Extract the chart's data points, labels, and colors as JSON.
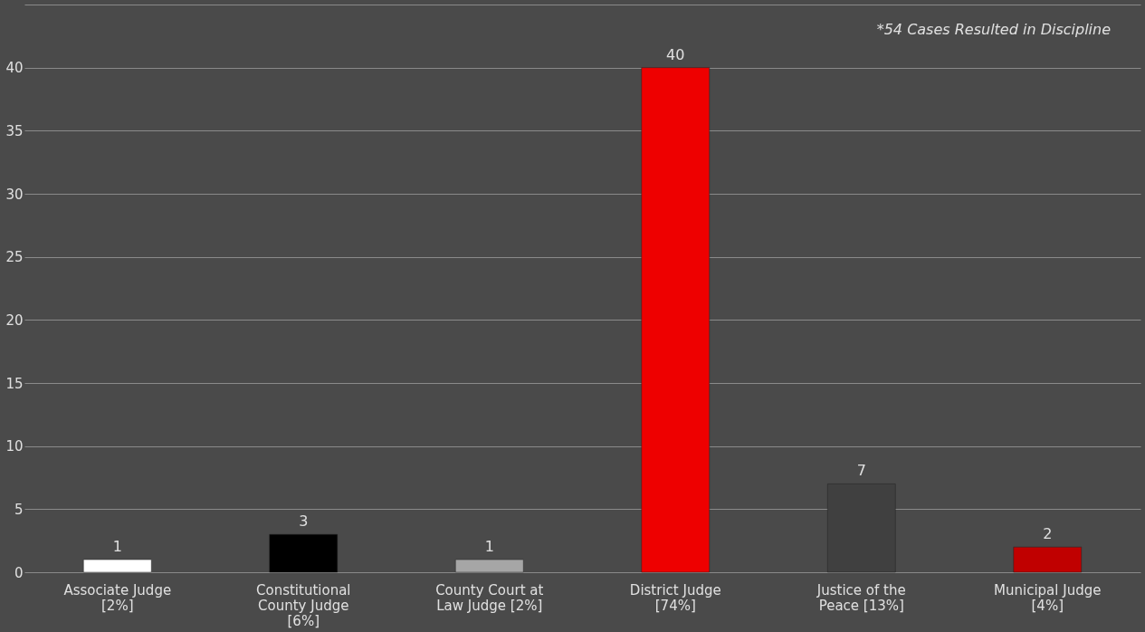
{
  "chart_data": {
    "type": "bar",
    "categories": [
      "Associate Judge\n[2%]",
      "Constitutional\nCounty Judge\n[6%]",
      "County Court at\nLaw Judge [2%]",
      "District  Judge\n[74%]",
      "Justice of the\nPeace [13%]",
      "Municipal Judge\n[4%]"
    ],
    "values": [
      1,
      3,
      1,
      40,
      7,
      2
    ],
    "colors": [
      "#ffffff",
      "#000000",
      "#a6a6a6",
      "#ee0000",
      "#404040",
      "#c00000"
    ],
    "ylim": [
      0,
      45
    ],
    "yticks": [
      0,
      5,
      10,
      15,
      20,
      25,
      30,
      35,
      40,
      {
        "value": 45,
        "label": null
      }
    ],
    "grid": "y",
    "data_labels": true,
    "annotations": [
      "*54 Cases Resulted in Discipline"
    ]
  }
}
